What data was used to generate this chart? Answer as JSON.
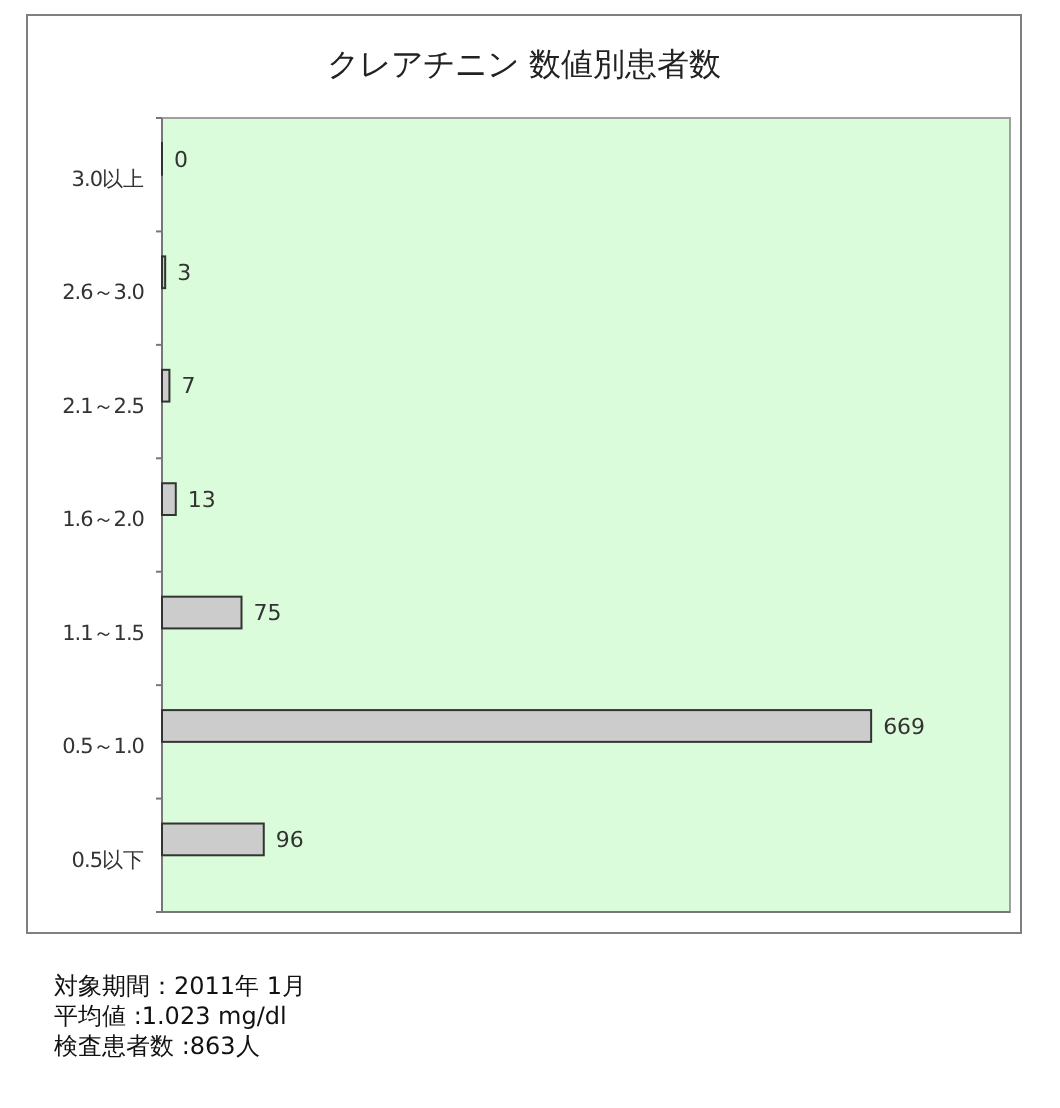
{
  "chart_data": {
    "type": "bar",
    "orientation": "horizontal",
    "title": "クレアチニン 数値別患者数",
    "categories": [
      "3.0以上",
      "2.6～3.0",
      "2.1～2.5",
      "1.6～2.0",
      "1.1～1.5",
      "0.5～1.0",
      "0.5以下"
    ],
    "values": [
      0,
      3,
      7,
      13,
      75,
      669,
      96
    ],
    "color": "#cccccc",
    "xlim": [
      0,
      800
    ],
    "tick_labels": "y",
    "data_labels": true,
    "annotations": [
      "対象期間：2011年 1月",
      "平均値 :1.023 mg/dl",
      "検査患者数 :863人"
    ]
  }
}
